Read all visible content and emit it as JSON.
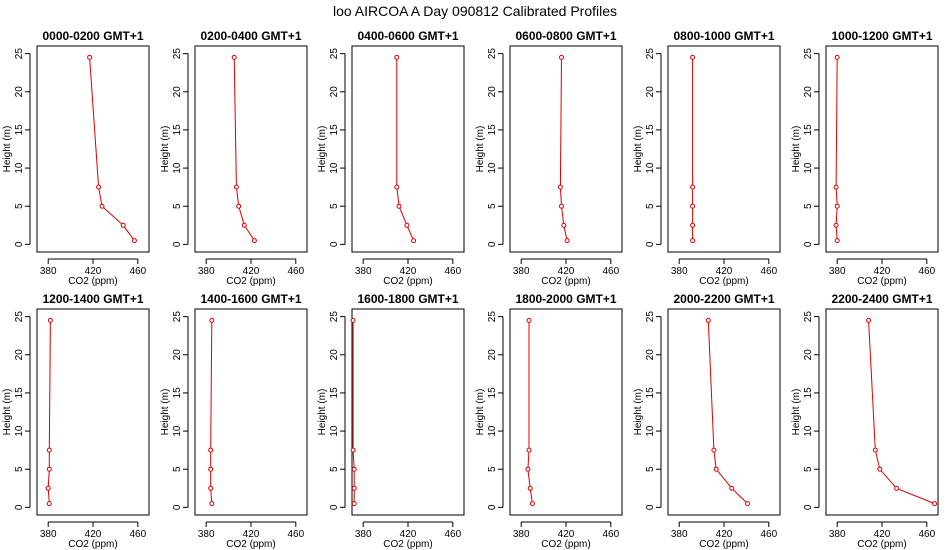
{
  "figure": {
    "title": "loo AIRCOA A  Day 090812  Calibrated Profiles"
  },
  "chart_data": [
    {
      "type": "line",
      "title": "0000-0200 GMT+1",
      "xlabel": "CO2 (ppm)",
      "ylabel": "Height (m)",
      "xlim": [
        370,
        470
      ],
      "ylim": [
        -1,
        26
      ],
      "xticks": [
        380,
        420,
        460
      ],
      "yticks": [
        0,
        5,
        10,
        15,
        20,
        25
      ],
      "series": [
        {
          "x": [
            457,
            447,
            428,
            425,
            417
          ],
          "y": [
            0.5,
            2.5,
            5,
            7.5,
            24.5
          ]
        }
      ]
    },
    {
      "type": "line",
      "title": "0200-0400 GMT+1",
      "xlabel": "CO2 (ppm)",
      "ylabel": "Height (m)",
      "xlim": [
        370,
        470
      ],
      "ylim": [
        -1,
        26
      ],
      "xticks": [
        380,
        420,
        460
      ],
      "yticks": [
        0,
        5,
        10,
        15,
        20,
        25
      ],
      "series": [
        {
          "x": [
            423,
            414,
            409,
            407,
            405
          ],
          "y": [
            0.5,
            2.5,
            5,
            7.5,
            24.5
          ]
        }
      ]
    },
    {
      "type": "line",
      "title": "0400-0600 GMT+1",
      "xlabel": "CO2 (ppm)",
      "ylabel": "Height (m)",
      "xlim": [
        370,
        470
      ],
      "ylim": [
        -1,
        26
      ],
      "xticks": [
        380,
        420,
        460
      ],
      "yticks": [
        0,
        5,
        10,
        15,
        20,
        25
      ],
      "series": [
        {
          "x": [
            425,
            419,
            412,
            410,
            410
          ],
          "y": [
            0.5,
            2.5,
            5,
            7.5,
            24.5
          ]
        }
      ]
    },
    {
      "type": "line",
      "title": "0600-0800 GMT+1",
      "xlabel": "CO2 (ppm)",
      "ylabel": "Height (m)",
      "xlim": [
        370,
        470
      ],
      "ylim": [
        -1,
        26
      ],
      "xticks": [
        380,
        420,
        460
      ],
      "yticks": [
        0,
        5,
        10,
        15,
        20,
        25
      ],
      "series": [
        {
          "x": [
            421,
            418,
            416,
            415,
            416
          ],
          "y": [
            0.5,
            2.5,
            5,
            7.5,
            24.5
          ]
        }
      ]
    },
    {
      "type": "line",
      "title": "0800-1000 GMT+1",
      "xlabel": "CO2 (ppm)",
      "ylabel": "Height (m)",
      "xlim": [
        370,
        470
      ],
      "ylim": [
        -1,
        26
      ],
      "xticks": [
        380,
        420,
        460
      ],
      "yticks": [
        0,
        5,
        10,
        15,
        20,
        25
      ],
      "series": [
        {
          "x": [
            392,
            392,
            392,
            392,
            392
          ],
          "y": [
            0.5,
            2.5,
            5,
            7.5,
            24.5
          ]
        }
      ]
    },
    {
      "type": "line",
      "title": "1000-1200 GMT+1",
      "xlabel": "CO2 (ppm)",
      "ylabel": "Height (m)",
      "xlim": [
        370,
        470
      ],
      "ylim": [
        -1,
        26
      ],
      "xticks": [
        380,
        420,
        460
      ],
      "yticks": [
        0,
        5,
        10,
        15,
        20,
        25
      ],
      "series": [
        {
          "x": [
            380,
            379,
            380,
            379,
            380
          ],
          "y": [
            0.5,
            2.5,
            5,
            7.5,
            24.5
          ]
        }
      ]
    },
    {
      "type": "line",
      "title": "1200-1400 GMT+1",
      "xlabel": "CO2 (ppm)",
      "ylabel": "Height (m)",
      "xlim": [
        370,
        470
      ],
      "ylim": [
        -1,
        26
      ],
      "xticks": [
        380,
        420,
        460
      ],
      "yticks": [
        0,
        5,
        10,
        15,
        20,
        25
      ],
      "series": [
        {
          "x": [
            381,
            380,
            381,
            381,
            382
          ],
          "y": [
            0.5,
            2.5,
            5,
            7.5,
            24.5
          ]
        }
      ]
    },
    {
      "type": "line",
      "title": "1400-1600 GMT+1",
      "xlabel": "CO2 (ppm)",
      "ylabel": "Height (m)",
      "xlim": [
        370,
        470
      ],
      "ylim": [
        -1,
        26
      ],
      "xticks": [
        380,
        420,
        460
      ],
      "yticks": [
        0,
        5,
        10,
        15,
        20,
        25
      ],
      "series": [
        {
          "x": [
            385,
            384,
            384,
            384,
            385
          ],
          "y": [
            0.5,
            2.5,
            5,
            7.5,
            24.5
          ]
        }
      ]
    },
    {
      "type": "line",
      "title": "1600-1800 GMT+1",
      "xlabel": "CO2 (ppm)",
      "ylabel": "Height (m)",
      "xlim": [
        370,
        470
      ],
      "ylim": [
        -1,
        26
      ],
      "xticks": [
        380,
        420,
        460
      ],
      "yticks": [
        0,
        5,
        10,
        15,
        20,
        25
      ],
      "series": [
        {
          "x": [
            372,
            372,
            372,
            371,
            371
          ],
          "y": [
            0.5,
            2.5,
            5,
            7.5,
            24.5
          ]
        }
      ]
    },
    {
      "type": "line",
      "title": "1800-2000 GMT+1",
      "xlabel": "CO2 (ppm)",
      "ylabel": "Height (m)",
      "xlim": [
        370,
        470
      ],
      "ylim": [
        -1,
        26
      ],
      "xticks": [
        380,
        420,
        460
      ],
      "yticks": [
        0,
        5,
        10,
        15,
        20,
        25
      ],
      "series": [
        {
          "x": [
            390,
            388,
            386,
            387,
            387
          ],
          "y": [
            0.5,
            2.5,
            5,
            7.5,
            24.5
          ]
        }
      ]
    },
    {
      "type": "line",
      "title": "2000-2200 GMT+1",
      "xlabel": "CO2 (ppm)",
      "ylabel": "Height (m)",
      "xlim": [
        370,
        470
      ],
      "ylim": [
        -1,
        26
      ],
      "xticks": [
        380,
        420,
        460
      ],
      "yticks": [
        0,
        5,
        10,
        15,
        20,
        25
      ],
      "series": [
        {
          "x": [
            441,
            427,
            413,
            411,
            406
          ],
          "y": [
            0.5,
            2.5,
            5,
            7.5,
            24.5
          ]
        }
      ]
    },
    {
      "type": "line",
      "title": "2200-2400 GMT+1",
      "xlabel": "CO2 (ppm)",
      "ylabel": "Height (m)",
      "xlim": [
        370,
        470
      ],
      "ylim": [
        -1,
        26
      ],
      "xticks": [
        380,
        420,
        460
      ],
      "yticks": [
        0,
        5,
        10,
        15,
        20,
        25
      ],
      "series": [
        {
          "x": [
            467,
            433,
            418,
            414,
            408
          ],
          "y": [
            0.5,
            2.5,
            5,
            7.5,
            24.5
          ]
        }
      ]
    }
  ],
  "colors": {
    "line": "#dd0000",
    "axes": "#000000",
    "background": "#ffffff"
  }
}
